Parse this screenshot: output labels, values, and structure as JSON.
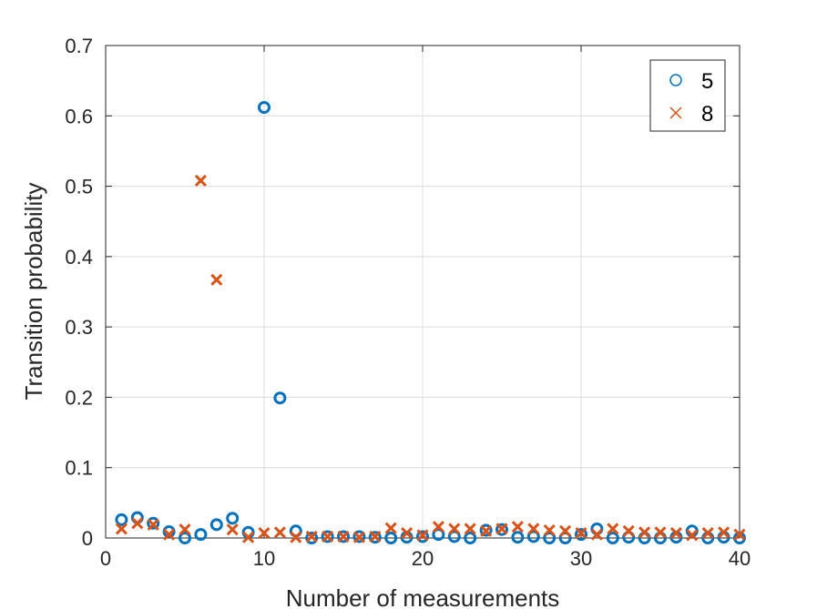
{
  "chart_data": {
    "type": "scatter",
    "title": "",
    "xlabel": "Number of measurements",
    "ylabel": "Transition probability",
    "xlim": [
      0,
      40
    ],
    "ylim": [
      0,
      0.7
    ],
    "grid": true,
    "legend_position": "top-right",
    "x_ticks": [
      0,
      10,
      20,
      30,
      40
    ],
    "y_ticks": [
      0,
      0.1,
      0.2,
      0.3,
      0.4,
      0.5,
      0.6,
      0.7
    ],
    "x_tick_labels": [
      "0",
      "10",
      "20",
      "30",
      "40"
    ],
    "y_tick_labels": [
      "0",
      "0.1",
      "0.2",
      "0.3",
      "0.4",
      "0.5",
      "0.6",
      "0.7"
    ],
    "series": [
      {
        "name": "5",
        "marker": "circle",
        "color": "#0072BD",
        "x": [
          1,
          2,
          3,
          4,
          5,
          6,
          7,
          8,
          9,
          10,
          11,
          12,
          13,
          14,
          15,
          16,
          17,
          18,
          19,
          20,
          21,
          22,
          23,
          24,
          25,
          26,
          27,
          28,
          29,
          30,
          31,
          32,
          33,
          34,
          35,
          36,
          37,
          38,
          39,
          40
        ],
        "y": [
          0.026,
          0.029,
          0.021,
          0.009,
          0.0,
          0.005,
          0.019,
          0.028,
          0.008,
          0.612,
          0.199,
          0.01,
          0.0,
          0.002,
          0.002,
          0.002,
          0.001,
          0.0,
          0.001,
          0.002,
          0.005,
          0.002,
          0.0,
          0.011,
          0.012,
          0.001,
          0.002,
          0.0,
          0.0,
          0.005,
          0.013,
          0.0,
          0.001,
          0.0,
          0.0,
          0.001,
          0.01,
          0.0,
          0.001,
          0.0
        ]
      },
      {
        "name": "8",
        "marker": "x",
        "color": "#D95319",
        "x": [
          1,
          2,
          3,
          4,
          5,
          6,
          7,
          8,
          9,
          10,
          11,
          12,
          13,
          14,
          15,
          16,
          17,
          18,
          19,
          20,
          21,
          22,
          23,
          24,
          25,
          26,
          27,
          28,
          29,
          30,
          31,
          32,
          33,
          34,
          35,
          36,
          37,
          38,
          39,
          40
        ],
        "y": [
          0.013,
          0.021,
          0.019,
          0.005,
          0.012,
          0.508,
          0.367,
          0.012,
          0.001,
          0.007,
          0.008,
          0.001,
          0.002,
          0.002,
          0.002,
          0.001,
          0.002,
          0.014,
          0.007,
          0.004,
          0.016,
          0.013,
          0.013,
          0.01,
          0.013,
          0.016,
          0.013,
          0.011,
          0.01,
          0.007,
          0.005,
          0.013,
          0.01,
          0.008,
          0.008,
          0.007,
          0.004,
          0.007,
          0.008,
          0.005
        ]
      }
    ]
  }
}
